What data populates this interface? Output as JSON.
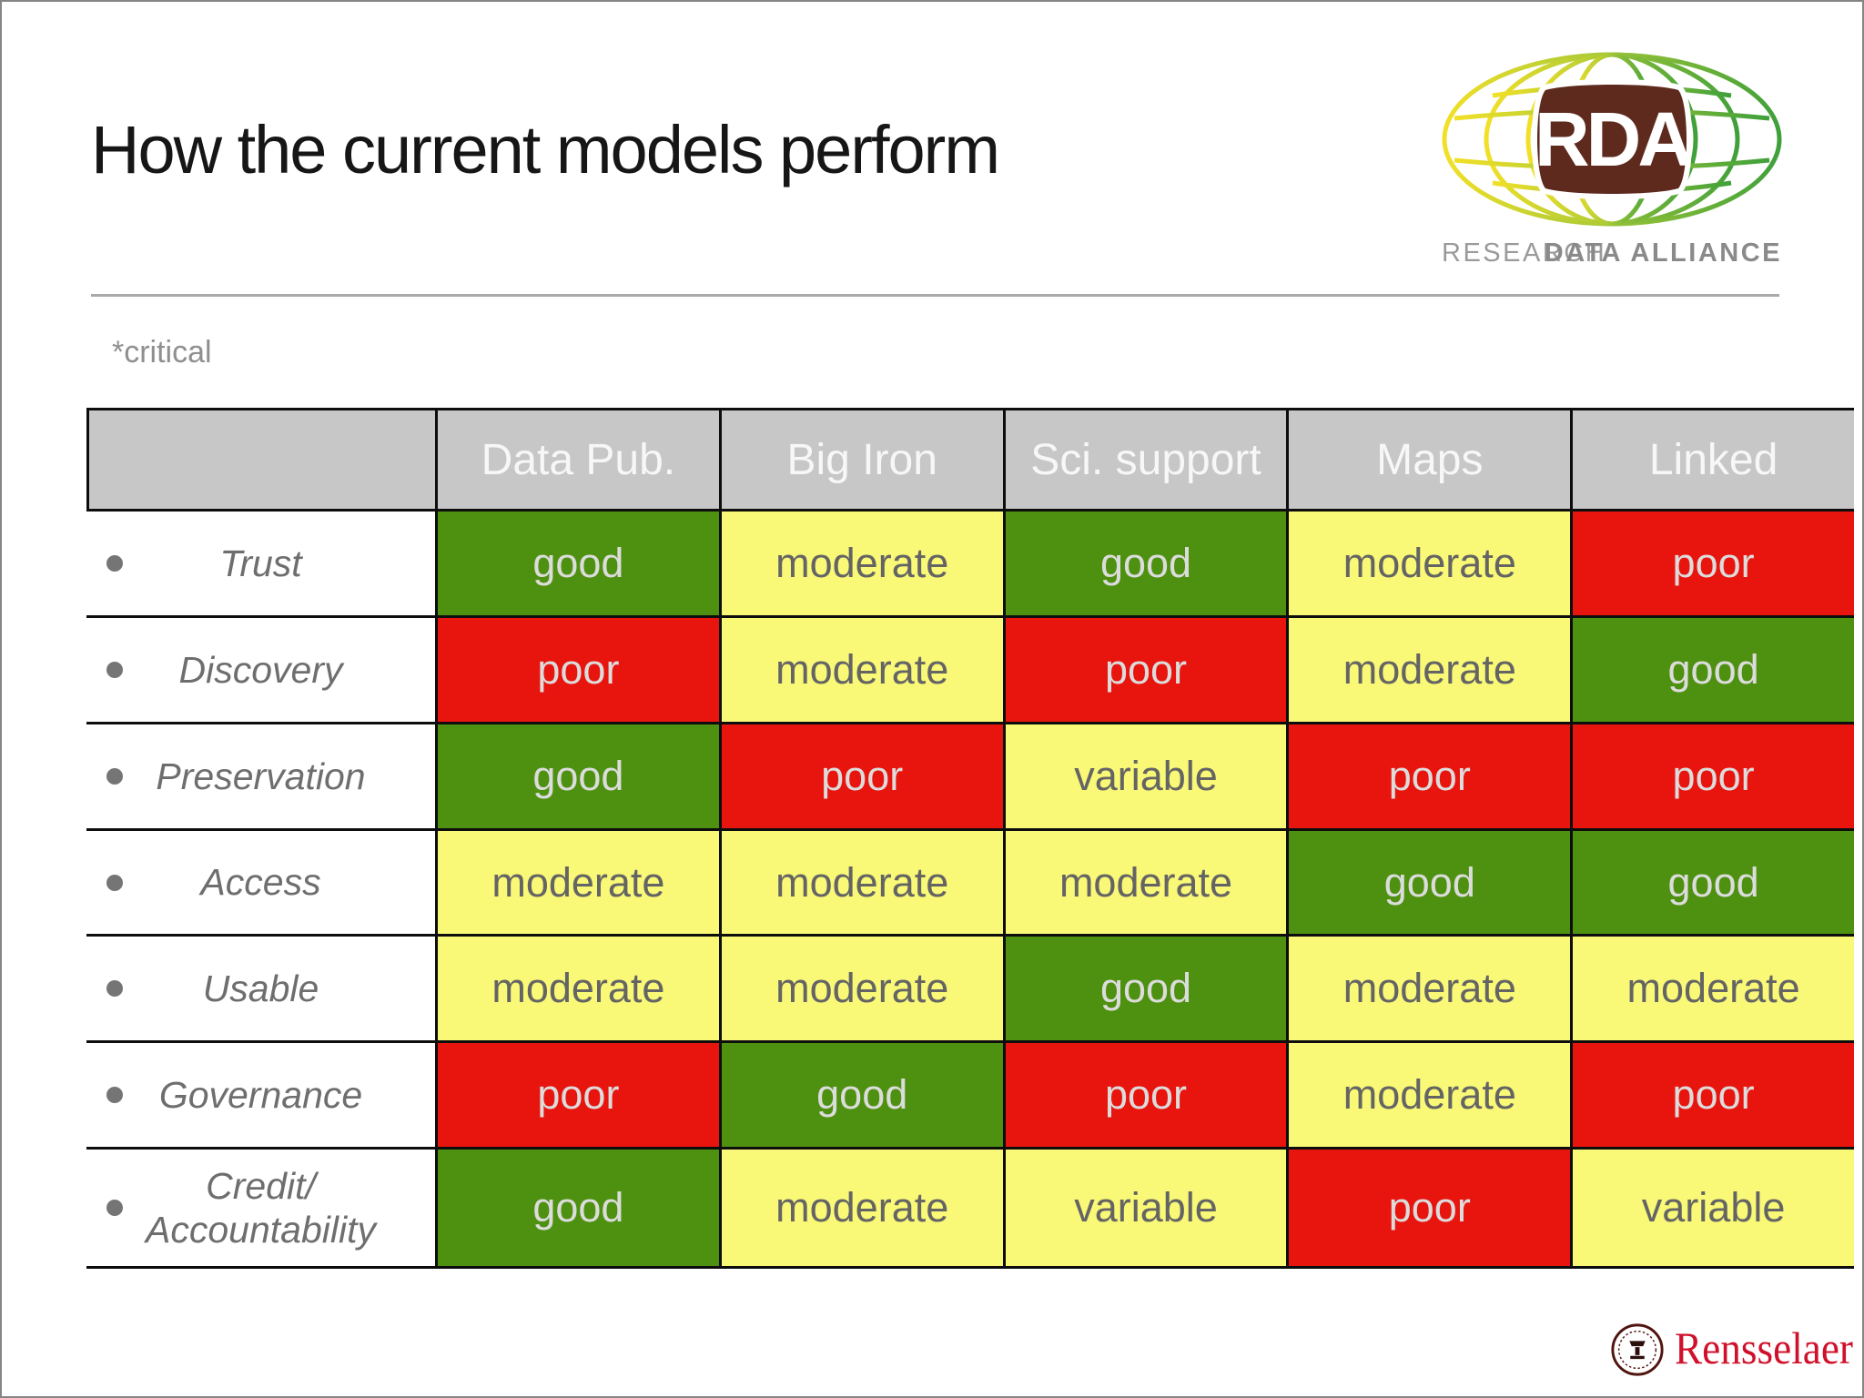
{
  "slide": {
    "title": "How the current models perform",
    "note": "*critical"
  },
  "rda_logo": {
    "acronym": "RDA",
    "caption_research": "RESEARCH",
    "caption_data_alliance": "DATA ALLIANCE"
  },
  "rpi_logo": {
    "wordmark": "Rensselaer"
  },
  "table": {
    "columns": [
      "Data Pub.",
      "Big Iron",
      "Sci. support",
      "Maps",
      "Linked"
    ],
    "rows": [
      {
        "criterion": "Trust",
        "cells": [
          {
            "label": "good",
            "level": "good"
          },
          {
            "label": "moderate",
            "level": "moderate"
          },
          {
            "label": "good",
            "level": "good"
          },
          {
            "label": "moderate",
            "level": "moderate"
          },
          {
            "label": "poor",
            "level": "poor"
          }
        ]
      },
      {
        "criterion": "Discovery",
        "cells": [
          {
            "label": "poor",
            "level": "poor"
          },
          {
            "label": "moderate",
            "level": "moderate"
          },
          {
            "label": "poor",
            "level": "poor"
          },
          {
            "label": "moderate",
            "level": "moderate"
          },
          {
            "label": "good",
            "level": "good"
          }
        ]
      },
      {
        "criterion": "Preservation",
        "cells": [
          {
            "label": "good",
            "level": "good"
          },
          {
            "label": "poor",
            "level": "poor"
          },
          {
            "label": "variable",
            "level": "variable"
          },
          {
            "label": "poor",
            "level": "poor"
          },
          {
            "label": "poor",
            "level": "poor"
          }
        ]
      },
      {
        "criterion": "Access",
        "cells": [
          {
            "label": "moderate",
            "level": "moderate"
          },
          {
            "label": "moderate",
            "level": "moderate"
          },
          {
            "label": "moderate",
            "level": "moderate"
          },
          {
            "label": "good",
            "level": "good"
          },
          {
            "label": "good",
            "level": "good"
          }
        ]
      },
      {
        "criterion": "Usable",
        "cells": [
          {
            "label": "moderate",
            "level": "moderate"
          },
          {
            "label": "moderate",
            "level": "moderate"
          },
          {
            "label": "good",
            "level": "good"
          },
          {
            "label": "moderate",
            "level": "moderate"
          },
          {
            "label": "moderate",
            "level": "moderate"
          }
        ]
      },
      {
        "criterion": "Governance",
        "cells": [
          {
            "label": "poor",
            "level": "poor"
          },
          {
            "label": "good",
            "level": "good"
          },
          {
            "label": "poor",
            "level": "poor"
          },
          {
            "label": "moderate",
            "level": "moderate"
          },
          {
            "label": "poor",
            "level": "poor"
          }
        ]
      },
      {
        "criterion": "Credit/ Accountability",
        "cells": [
          {
            "label": "good",
            "level": "good"
          },
          {
            "label": "moderate",
            "level": "moderate"
          },
          {
            "label": "variable",
            "level": "variable"
          },
          {
            "label": "poor",
            "level": "poor"
          },
          {
            "label": "variable",
            "level": "variable"
          }
        ]
      }
    ]
  },
  "colors": {
    "good": "#4e9110",
    "moderate": "#f9f877",
    "variable": "#f9f877",
    "poor": "#e8150f",
    "rating_text_light": "#dcdcdc",
    "rating_text_dark": "#646464",
    "header_bg": "#c7c7c7",
    "header_text": "#f7f7f7",
    "rda_brown": "#5e2a1e",
    "rensselaer_red": "#d0112b"
  }
}
